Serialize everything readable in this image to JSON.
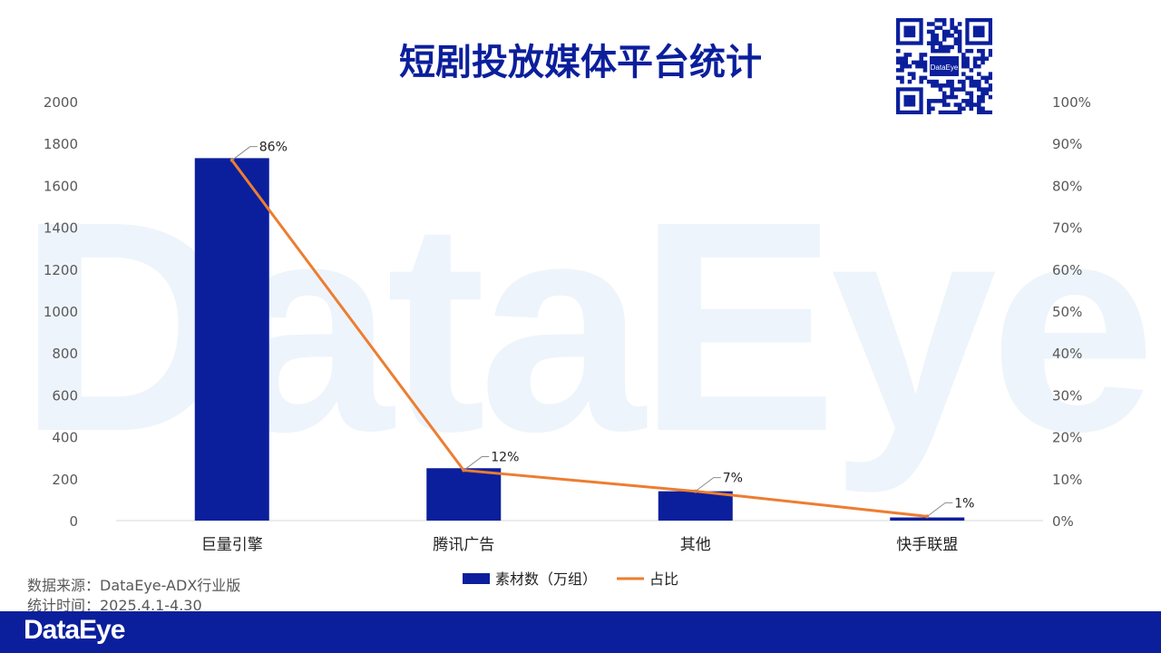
{
  "brand": {
    "watermark_text": "DataEye",
    "footer_logo": "DataEye",
    "qr_badge": "DataEye",
    "primary_color": "#0b1f9c",
    "line_color": "#ed7d31"
  },
  "header": {
    "title": "短剧投放媒体平台统计"
  },
  "source": {
    "line1": "数据来源：DataEye-ADX行业版",
    "line2": "统计时间：2025.4.1-4.30"
  },
  "chart_data": {
    "type": "bar",
    "title": "短剧投放媒体平台统计",
    "categories": [
      "巨量引擎",
      "腾讯广告",
      "其他",
      "快手联盟"
    ],
    "series": [
      {
        "name": "素材数（万组）",
        "type": "bar",
        "axis": "left",
        "values": [
          1730,
          250,
          140,
          15
        ]
      },
      {
        "name": "占比",
        "type": "line",
        "axis": "right",
        "values": [
          86,
          12,
          7,
          1
        ]
      }
    ],
    "data_labels": [
      "86%",
      "12%",
      "7%",
      "1%"
    ],
    "y_left": {
      "min": 0,
      "max": 2000,
      "ticks": [
        "0",
        "200",
        "400",
        "600",
        "800",
        "1000",
        "1200",
        "1400",
        "1600",
        "1800",
        "2000"
      ]
    },
    "y_right": {
      "min": 0,
      "max": 100,
      "ticks": [
        "0%",
        "10%",
        "20%",
        "30%",
        "40%",
        "50%",
        "60%",
        "70%",
        "80%",
        "90%",
        "100%"
      ]
    },
    "legend": {
      "position": "bottom"
    },
    "grid": false
  }
}
